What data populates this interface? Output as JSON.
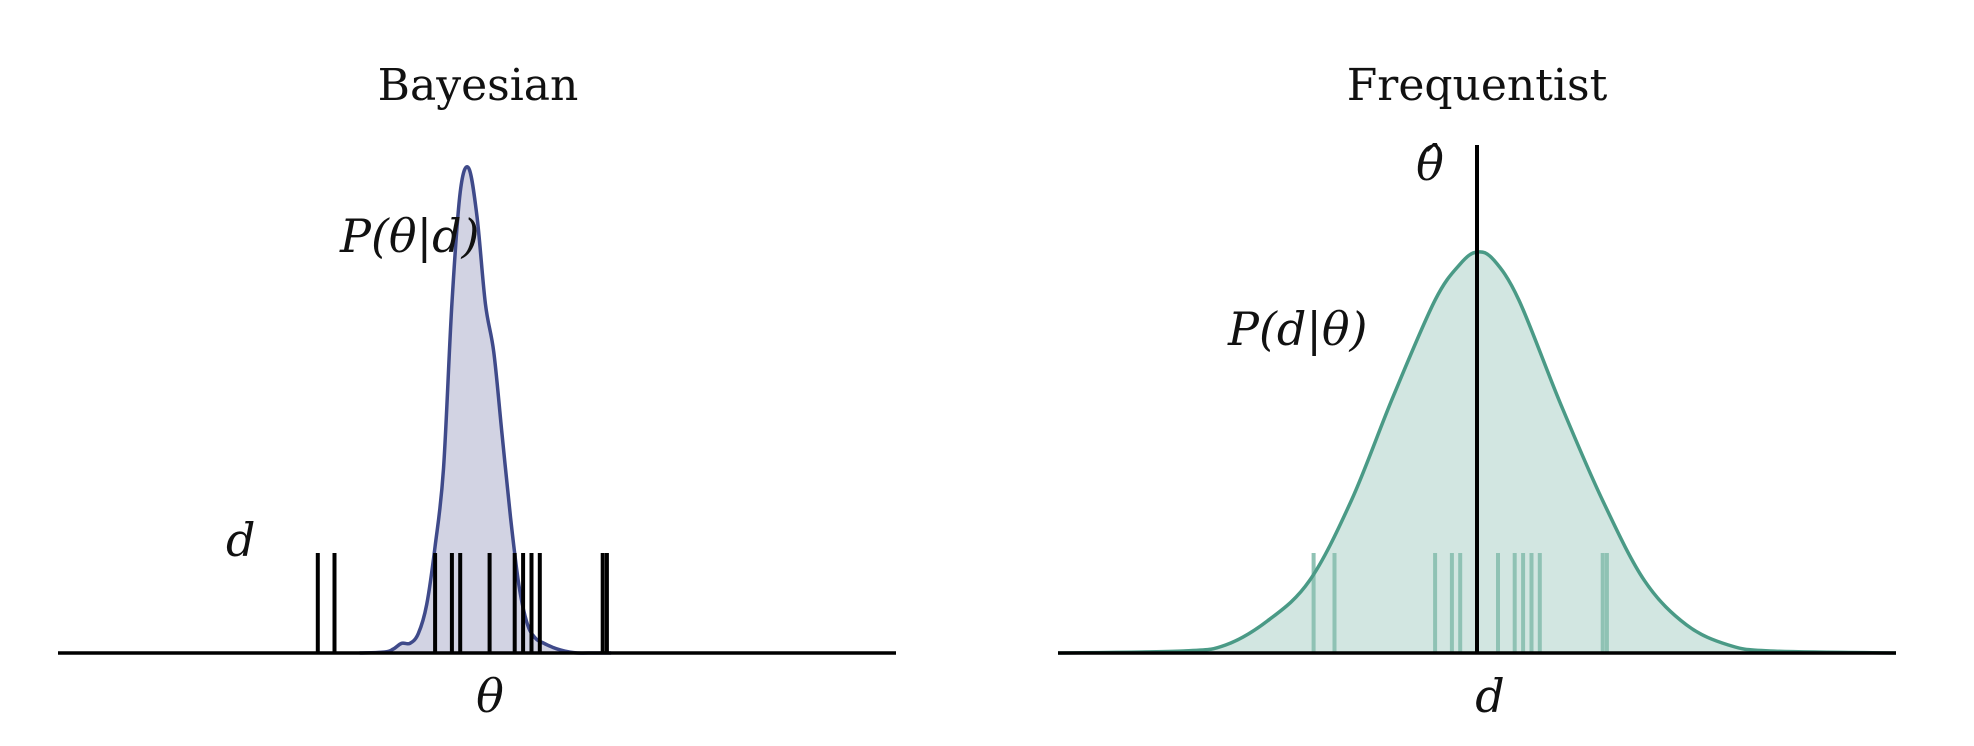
{
  "chart_data": [
    {
      "type": "area",
      "title": "Bayesian",
      "xlabel": "θ",
      "curve_label": "P(θ|d)",
      "rug_label": "d",
      "color": "#3f4a8a",
      "fill": "#d2d3e3",
      "rug_color": "#000000",
      "xlim": [
        0,
        10
      ],
      "ylim": [
        0,
        1
      ],
      "curve": {
        "x": [
          3.6,
          3.9,
          4.0,
          4.1,
          4.2,
          4.3,
          4.4,
          4.5,
          4.6,
          4.7,
          4.8,
          4.9,
          5.0,
          5.1,
          5.2,
          5.3,
          5.4,
          5.5,
          5.6,
          5.7,
          5.8,
          5.9,
          6.0,
          6.1,
          6.2,
          6.4,
          6.6
        ],
        "y": [
          0.0,
          0.002,
          0.008,
          0.02,
          0.02,
          0.04,
          0.1,
          0.22,
          0.38,
          0.72,
          0.95,
          1.0,
          0.9,
          0.72,
          0.62,
          0.45,
          0.28,
          0.14,
          0.06,
          0.03,
          0.02,
          0.012,
          0.006,
          0.002,
          0.0,
          0.0,
          0.0
        ]
      },
      "data_points": [
        3.1,
        3.3,
        4.5,
        4.7,
        4.8,
        5.15,
        5.45,
        5.55,
        5.65,
        5.75,
        6.5,
        6.55
      ]
    },
    {
      "type": "area",
      "title": "Frequentist",
      "xlabel": "d",
      "curve_label": "P(d|θ)",
      "estimate_label": "θ̂",
      "color": "#4a9a86",
      "fill": "#d2e6e1",
      "rug_color": "#8fc2b4",
      "xlim": [
        0,
        10
      ],
      "ylim": [
        0,
        1
      ],
      "estimate_x": 5.0,
      "curve": {
        "x": [
          0,
          1.5,
          2.0,
          2.5,
          3.0,
          3.5,
          4.0,
          4.5,
          4.8,
          5.0,
          5.2,
          5.5,
          6.0,
          6.5,
          7.0,
          7.5,
          8.0,
          8.5,
          10
        ],
        "y": [
          0.0,
          0.005,
          0.02,
          0.08,
          0.18,
          0.38,
          0.64,
          0.88,
          0.97,
          1.0,
          0.98,
          0.88,
          0.62,
          0.38,
          0.18,
          0.07,
          0.02,
          0.005,
          0.0
        ]
      },
      "data_points": [
        3.05,
        3.3,
        4.5,
        4.7,
        4.8,
        5.25,
        5.45,
        5.55,
        5.65,
        5.75,
        6.5,
        6.55
      ]
    }
  ]
}
